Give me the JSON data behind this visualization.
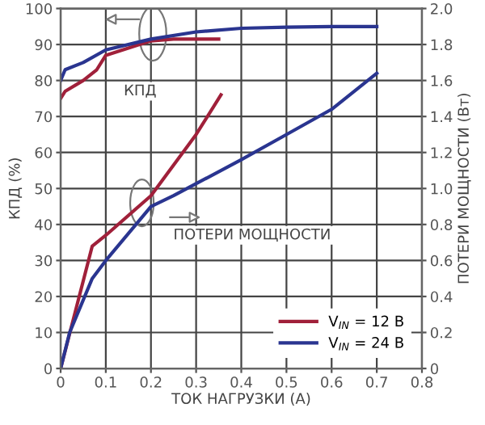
{
  "chart_data": {
    "type": "line",
    "xlabel": "ТОК НАГРУЗКИ (A)",
    "ylabel": "КПД (%)",
    "y2label": "ПОТЕРИ МОЩНОСТИ (Вт)",
    "series": [
      {
        "name": "V$_{IN}$ = 12 В",
        "color": "#a0203a",
        "x": [
          0,
          0.01,
          0.05,
          0.08,
          0.1,
          0.15,
          0.2,
          0.25,
          0.35
        ],
        "values": [
          75,
          77,
          80,
          83,
          87,
          89,
          91,
          91.5,
          91.5
        ]
      },
      {
        "name": "V$_{IN}$ = 24 В",
        "color": "#2a3590",
        "x": [
          0,
          0.01,
          0.05,
          0.1,
          0.2,
          0.3,
          0.4,
          0.5,
          0.6,
          0.7
        ],
        "values": [
          80,
          83,
          85,
          88.5,
          91.5,
          93.5,
          94.5,
          94.8,
          95,
          95
        ]
      },
      {
        "color": "#a0203a",
        "axis": "y2",
        "x": [
          0,
          0.07,
          0.1,
          0.2,
          0.3,
          0.355
        ],
        "values": [
          0,
          0.68,
          0.74,
          0.96,
          1.3,
          1.52
        ]
      },
      {
        "color": "#2a3590",
        "axis": "y2",
        "x": [
          0,
          0.02,
          0.07,
          0.1,
          0.2,
          0.25,
          0.4,
          0.5,
          0.6,
          0.7
        ],
        "values": [
          0,
          0.2,
          0.5,
          0.6,
          0.9,
          0.96,
          1.16,
          1.3,
          1.44,
          1.64
        ]
      }
    ],
    "annotations": [
      "КПД",
      "ПОТЕРИ МОЩНОСТИ"
    ],
    "xlim": [
      0,
      0.8
    ],
    "xticks": [
      0,
      0.1,
      0.2,
      0.3,
      0.4,
      0.5,
      0.6,
      0.7,
      0.8
    ],
    "ylim": [
      0,
      100
    ],
    "yticks": [
      0,
      10,
      20,
      30,
      40,
      50,
      60,
      70,
      80,
      90,
      100
    ],
    "y2lim": [
      0,
      2
    ],
    "y2ticks": [
      0,
      0.2,
      0.4,
      0.6,
      0.8,
      {
        "value": 1,
        "label": "1.0"
      },
      1.2,
      1.4,
      1.6,
      1.8,
      {
        "value": 2,
        "label": "2.0"
      }
    ],
    "grid": true,
    "legend": "bottom right",
    "marker": "none",
    "line_style": "solid"
  }
}
